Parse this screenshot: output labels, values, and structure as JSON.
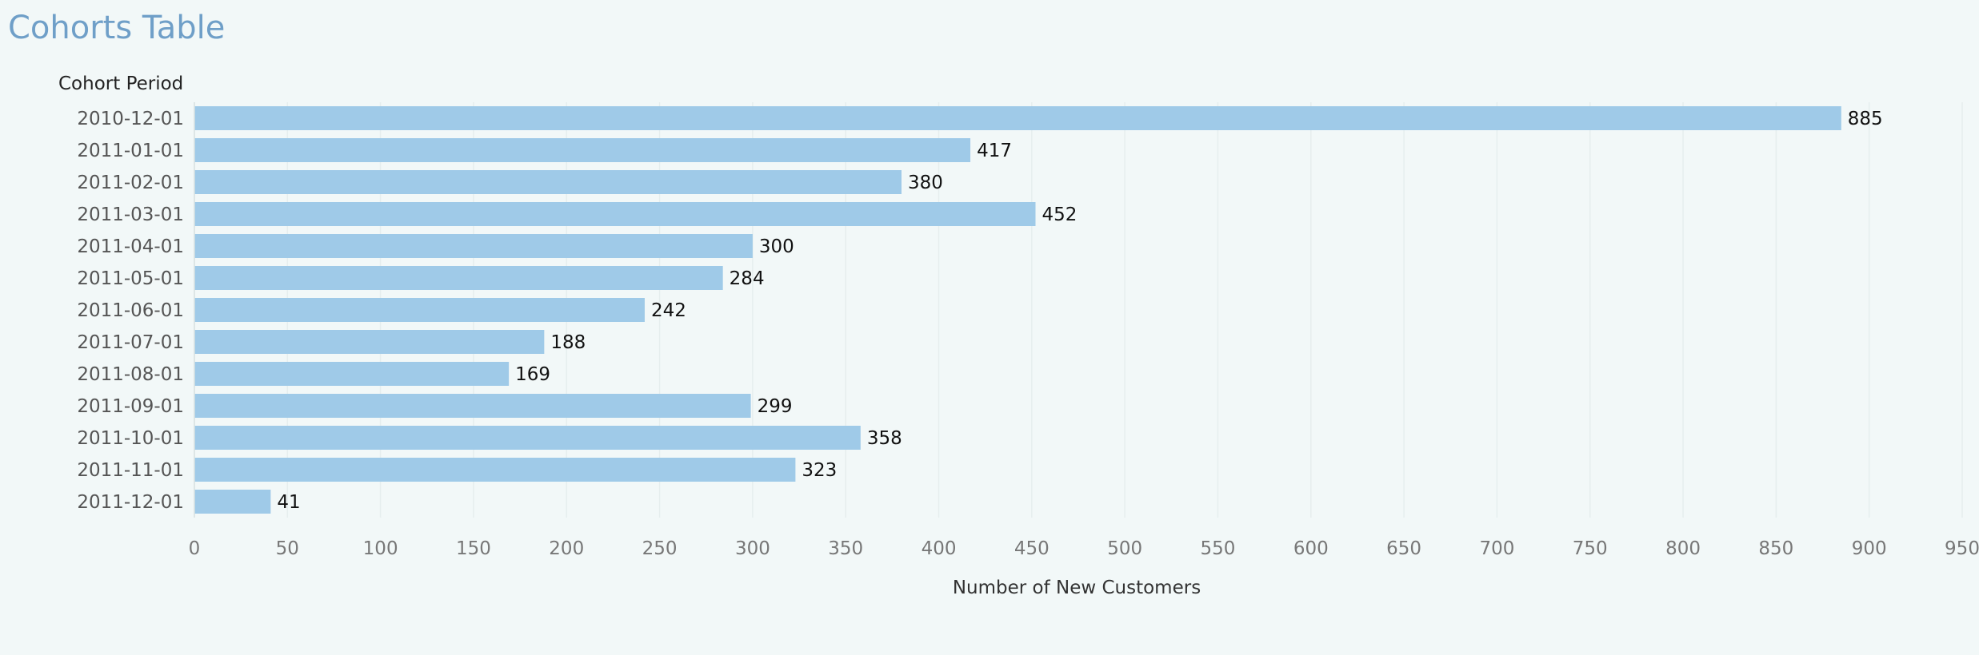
{
  "page": {
    "title": "Cohorts Table"
  },
  "colors": {
    "title": "#6f9fc8",
    "bar": "#9fcae8",
    "background": "#f2f8f8"
  },
  "chart_data": {
    "type": "bar",
    "orientation": "horizontal",
    "row_header": "Cohort Period",
    "categories": [
      "2010-12-01",
      "2011-01-01",
      "2011-02-01",
      "2011-03-01",
      "2011-04-01",
      "2011-05-01",
      "2011-06-01",
      "2011-07-01",
      "2011-08-01",
      "2011-09-01",
      "2011-10-01",
      "2011-11-01",
      "2011-12-01"
    ],
    "values": [
      885,
      417,
      380,
      452,
      300,
      284,
      242,
      188,
      169,
      299,
      358,
      323,
      41
    ],
    "xlabel": "Number of New Customers",
    "xlim": [
      0,
      950
    ],
    "xticks": [
      0,
      50,
      100,
      150,
      200,
      250,
      300,
      350,
      400,
      450,
      500,
      550,
      600,
      650,
      700,
      750,
      800,
      850,
      900,
      950
    ],
    "grid": true,
    "data_labels": true
  }
}
